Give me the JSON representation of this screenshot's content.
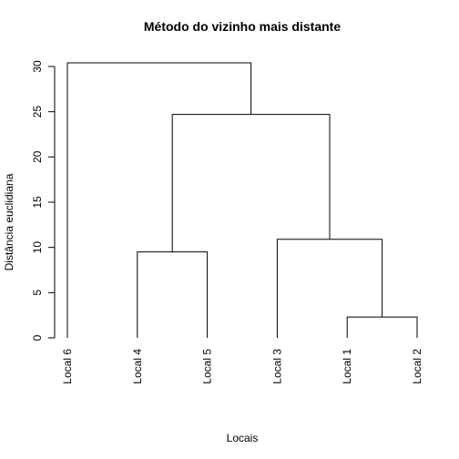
{
  "chart_data": {
    "type": "dendrogram",
    "title": "Método do vizinho mais distante",
    "xlabel": "Locais",
    "ylabel": "Distância euclidiana",
    "ylim": [
      0,
      30
    ],
    "yticks": [
      0,
      5,
      10,
      15,
      20,
      25,
      30
    ],
    "leaves": [
      "Local 6",
      "Local 4",
      "Local 5",
      "Local 3",
      "Local 1",
      "Local 2"
    ],
    "merges": [
      {
        "left": "Local 1",
        "right": "Local 2",
        "height": 2.3
      },
      {
        "left": "Local 4",
        "right": "Local 5",
        "height": 9.5
      },
      {
        "left": "Local 3",
        "right": "Local 1 + Local 2",
        "height": 10.9
      },
      {
        "left": "Local 4 + Local 5",
        "right": "Local 3 + Local 1 + Local 2",
        "height": 24.7
      },
      {
        "left": "Local 6",
        "right": "Local 4 + Local 5 + Local 3 + Local 1 + Local 2",
        "height": 30.4
      }
    ],
    "grid": false,
    "legend": "none"
  }
}
